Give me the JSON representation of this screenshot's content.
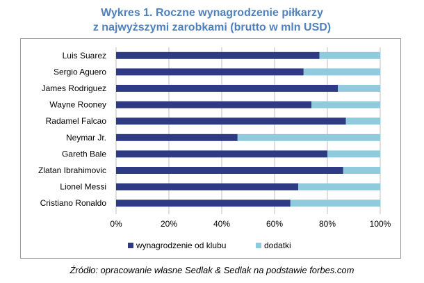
{
  "header": {
    "title_line1": "Wykres 1. Roczne wynagrodzenie piłkarzy",
    "title_line2": "z najwyższymi zarobkami (brutto w mln USD)"
  },
  "source_note": "Źródło: opracowanie własne Sedlak & Sedlak na podstawie forbes.com",
  "colors": {
    "club": "#2f3a85",
    "bonus": "#8fcadd",
    "grid": "#bfbfbf",
    "title": "#4f81bd"
  },
  "chart_data": {
    "type": "bar",
    "orientation": "horizontal",
    "stacked": "percent",
    "categories": [
      "Luis Suarez",
      "Sergio Aguero",
      "James Rodriguez",
      "Wayne Rooney",
      "Radamel Falcao",
      "Neymar Jr.",
      "Gareth Bale",
      "Zlatan Ibrahimovic",
      "Lionel Messi",
      "Cristiano Ronaldo"
    ],
    "series": [
      {
        "name": "wynagrodzenie od klubu",
        "color": "#2f3a85",
        "values": [
          77,
          71,
          84,
          74,
          87,
          46,
          80,
          86,
          69,
          66
        ]
      },
      {
        "name": "dodatki",
        "color": "#8fcadd",
        "values": [
          23,
          29,
          16,
          26,
          13,
          54,
          20,
          14,
          31,
          34
        ]
      }
    ],
    "xlim": [
      0,
      100
    ],
    "xticks": [
      "0%",
      "20%",
      "40%",
      "60%",
      "80%",
      "100%"
    ],
    "grid": true,
    "legend_position": "bottom"
  }
}
